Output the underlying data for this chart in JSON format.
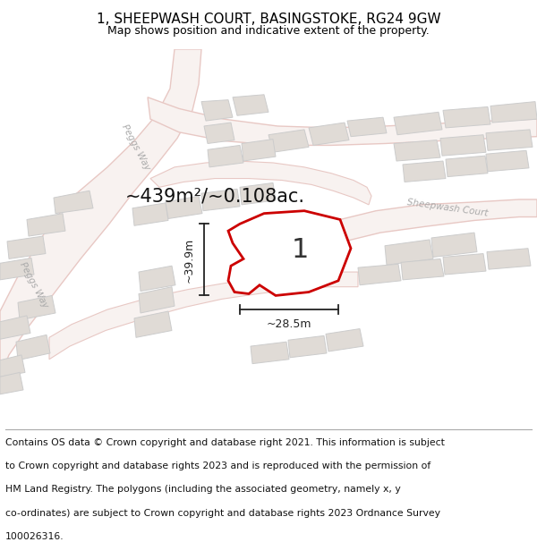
{
  "title": "1, SHEEPWASH COURT, BASINGSTOKE, RG24 9GW",
  "subtitle": "Map shows position and indicative extent of the property.",
  "area_text": "~439m²/~0.108ac.",
  "dim_width": "~28.5m",
  "dim_height": "~39.9m",
  "plot_number": "1",
  "footer_lines": [
    "Contains OS data © Crown copyright and database right 2021. This information is subject",
    "to Crown copyright and database rights 2023 and is reproduced with the permission of",
    "HM Land Registry. The polygons (including the associated geometry, namely x, y",
    "co-ordinates) are subject to Crown copyright and database rights 2023 Ordnance Survey",
    "100026316."
  ],
  "map_bg": "#f0ece8",
  "road_fc": "#f8f2f0",
  "road_ec": "#e8c8c4",
  "bldg_fc": "#e0dbd6",
  "bldg_ec": "#cccccc",
  "plot_fill": "#ffffff",
  "plot_edge": "#cc0000",
  "plot_edge_width": 2.0,
  "dim_color": "#222222",
  "street_label_color": "#aaaaaa",
  "title_fontsize": 11,
  "subtitle_fontsize": 9,
  "footer_fontsize": 7.8,
  "map_xlim": [
    0,
    600
  ],
  "map_ylim": [
    430,
    0
  ]
}
